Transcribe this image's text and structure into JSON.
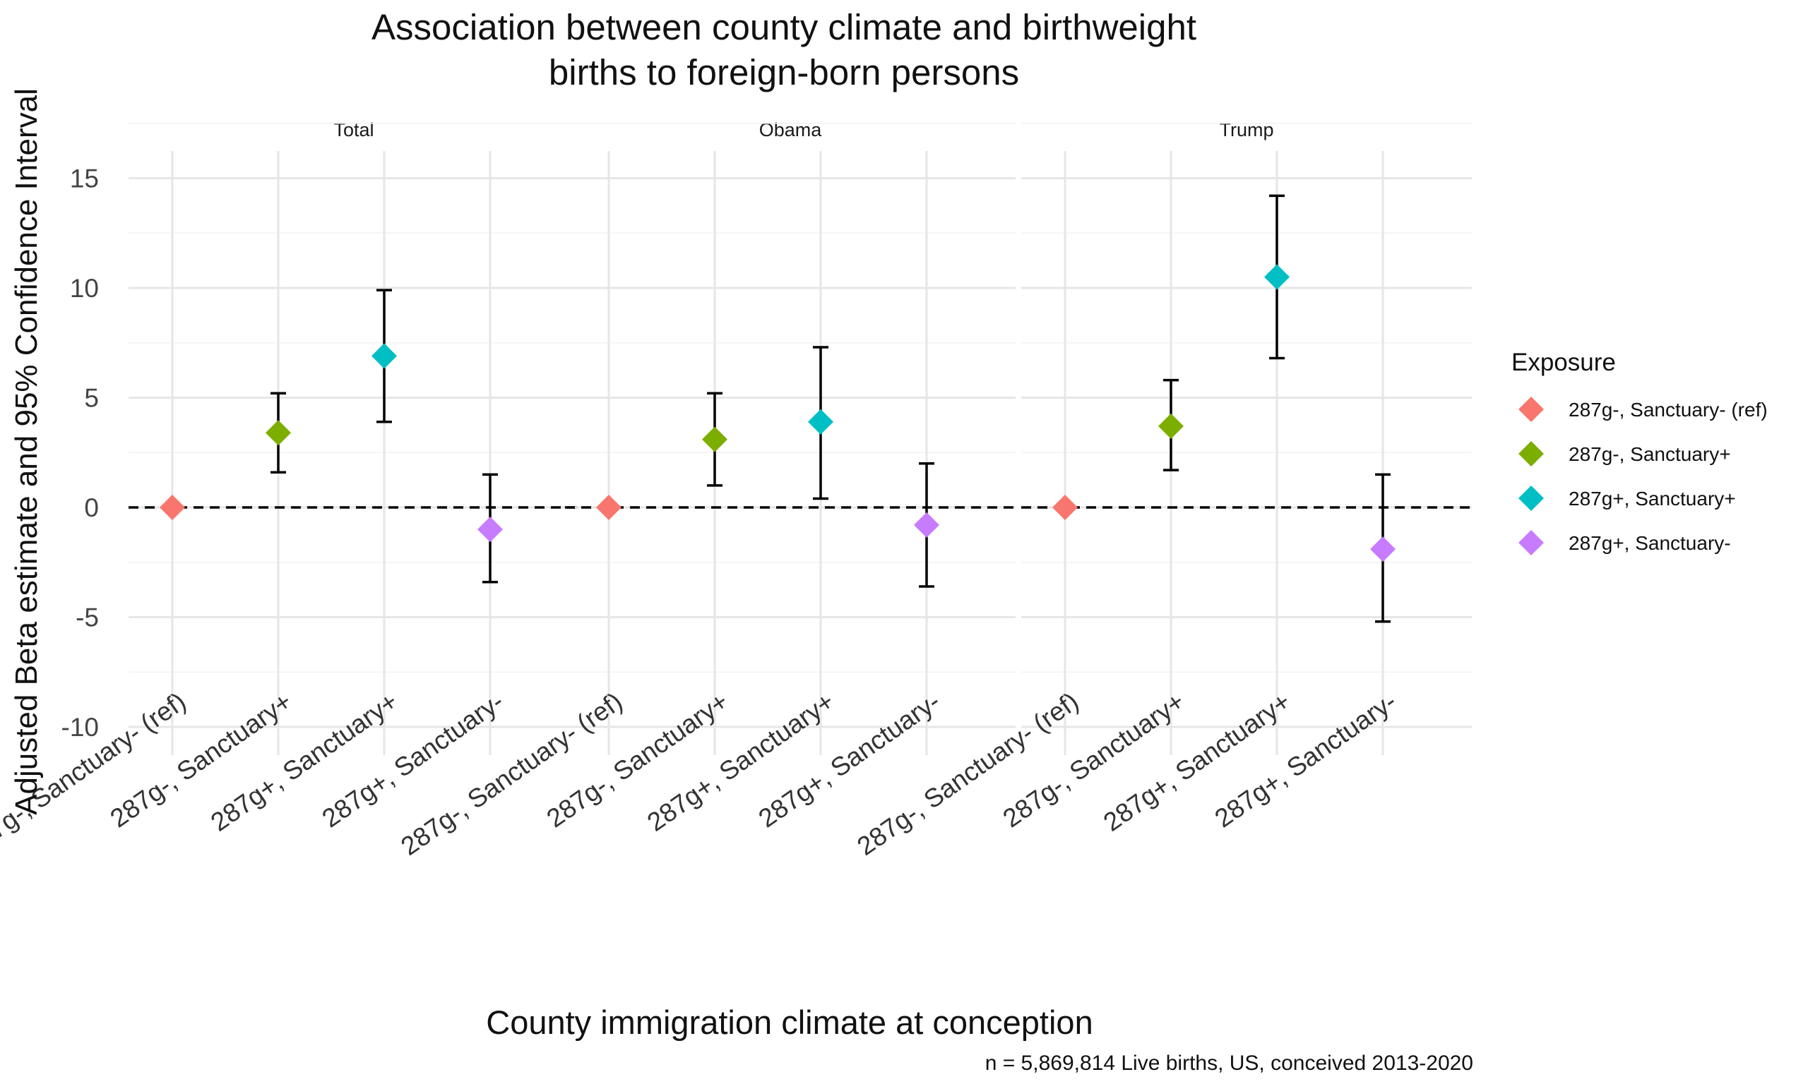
{
  "chart_data": {
    "type": "scatter",
    "title_lines": [
      "Association between county climate and birthweight",
      "births to foreign-born persons"
    ],
    "xlabel": "County immigration climate at conception",
    "ylabel": "Adjusted Beta estimate and 95% Confidence Interval",
    "caption": "n = 5,869,814 Live births, US, conceived 2013-2020",
    "ylim": [
      -11.5,
      16.5
    ],
    "y_ticks": [
      15,
      10,
      5,
      0,
      -5,
      -10
    ],
    "y_tick_labels": [
      "15",
      "10",
      "5",
      "0",
      "-5",
      "-10"
    ],
    "reference_line": 0,
    "grid": true,
    "legend_position": "right",
    "legend_title": "Exposure",
    "categories": [
      "287g-, Sanctuary- (ref)",
      "287g-, Sanctuary+",
      "287g+, Sanctuary+",
      "287g+, Sanctuary-"
    ],
    "colors": [
      "#F8766D",
      "#7CAE00",
      "#00BFC4",
      "#C77CFF"
    ],
    "panels": [
      {
        "name": "Total",
        "estimates": [
          0,
          3.4,
          6.9,
          -1.0
        ],
        "ci_low": [
          0,
          1.6,
          3.9,
          -3.4
        ],
        "ci_high": [
          0,
          5.2,
          9.9,
          1.5
        ]
      },
      {
        "name": "Obama",
        "estimates": [
          0,
          3.1,
          3.9,
          -0.8
        ],
        "ci_low": [
          0,
          1.0,
          0.4,
          -3.6
        ],
        "ci_high": [
          0,
          5.2,
          7.3,
          2.0
        ]
      },
      {
        "name": "Trump",
        "estimates": [
          0,
          3.7,
          10.5,
          -1.9
        ],
        "ci_low": [
          0,
          1.7,
          6.8,
          -5.2
        ],
        "ci_high": [
          0,
          5.8,
          14.2,
          1.5
        ]
      }
    ]
  }
}
